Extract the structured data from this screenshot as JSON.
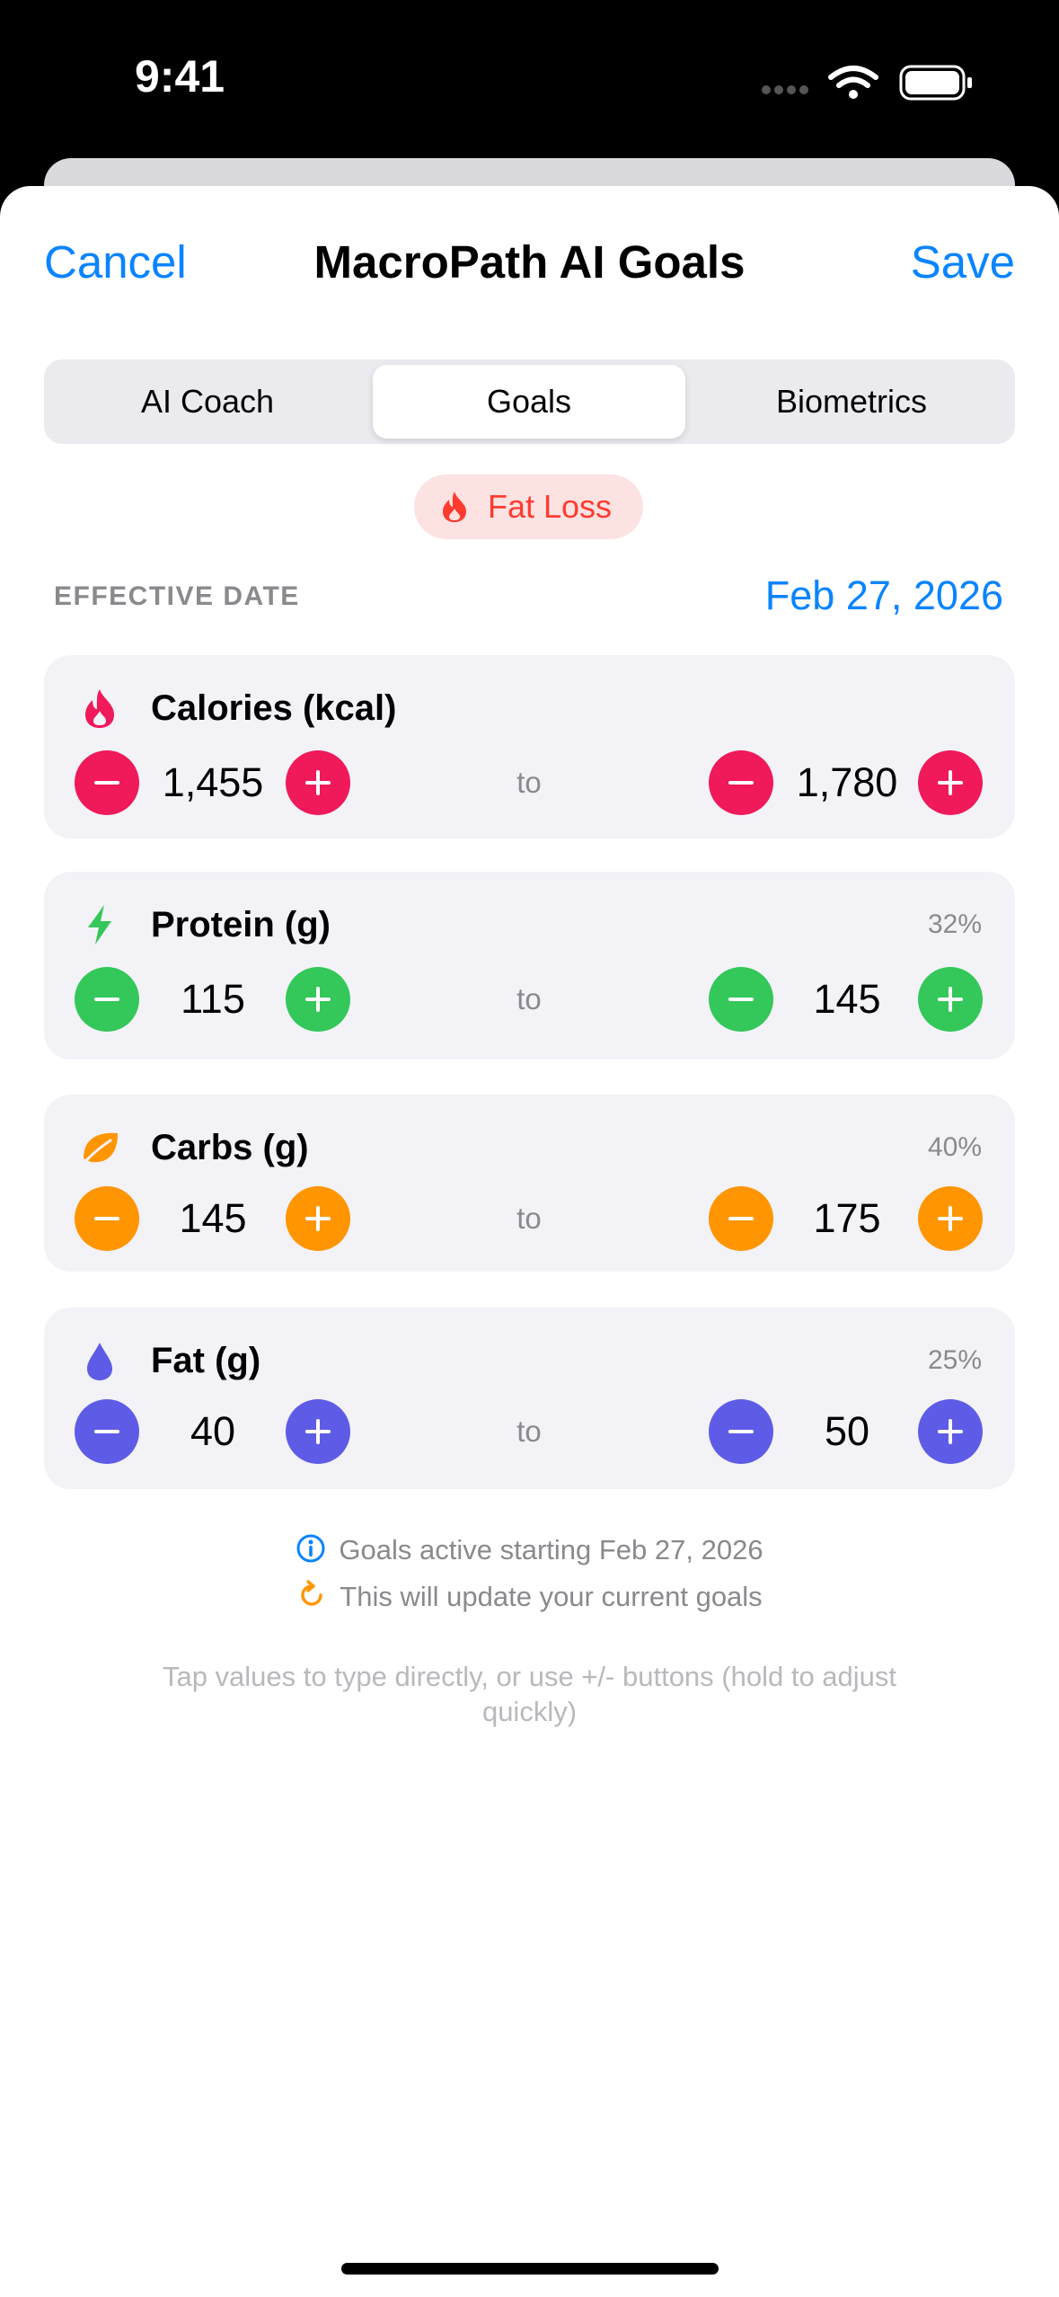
{
  "status_bar": {
    "time": "9:41"
  },
  "nav": {
    "cancel": "Cancel",
    "title": "MacroPath AI Goals",
    "save": "Save"
  },
  "tabs": [
    "AI Coach",
    "Goals",
    "Biometrics"
  ],
  "goal_badge": "Fat Loss",
  "effective_date": {
    "label": "EFFECTIVE DATE",
    "value": "Feb 27, 2026"
  },
  "range_word": "to",
  "macros": [
    {
      "name": "Calories (kcal)",
      "min": "1,455",
      "max": "1,780"
    },
    {
      "name": "Protein (g)",
      "percent": "32%",
      "min": "115",
      "max": "145"
    },
    {
      "name": "Carbs (g)",
      "percent": "40%",
      "min": "145",
      "max": "175"
    },
    {
      "name": "Fat (g)",
      "percent": "25%",
      "min": "40",
      "max": "50"
    }
  ],
  "info": [
    "Goals active starting Feb 27, 2026",
    "This will update your current goals"
  ],
  "hint": "Tap values to type directly, or use +/- buttons (hold to adjust quickly)"
}
